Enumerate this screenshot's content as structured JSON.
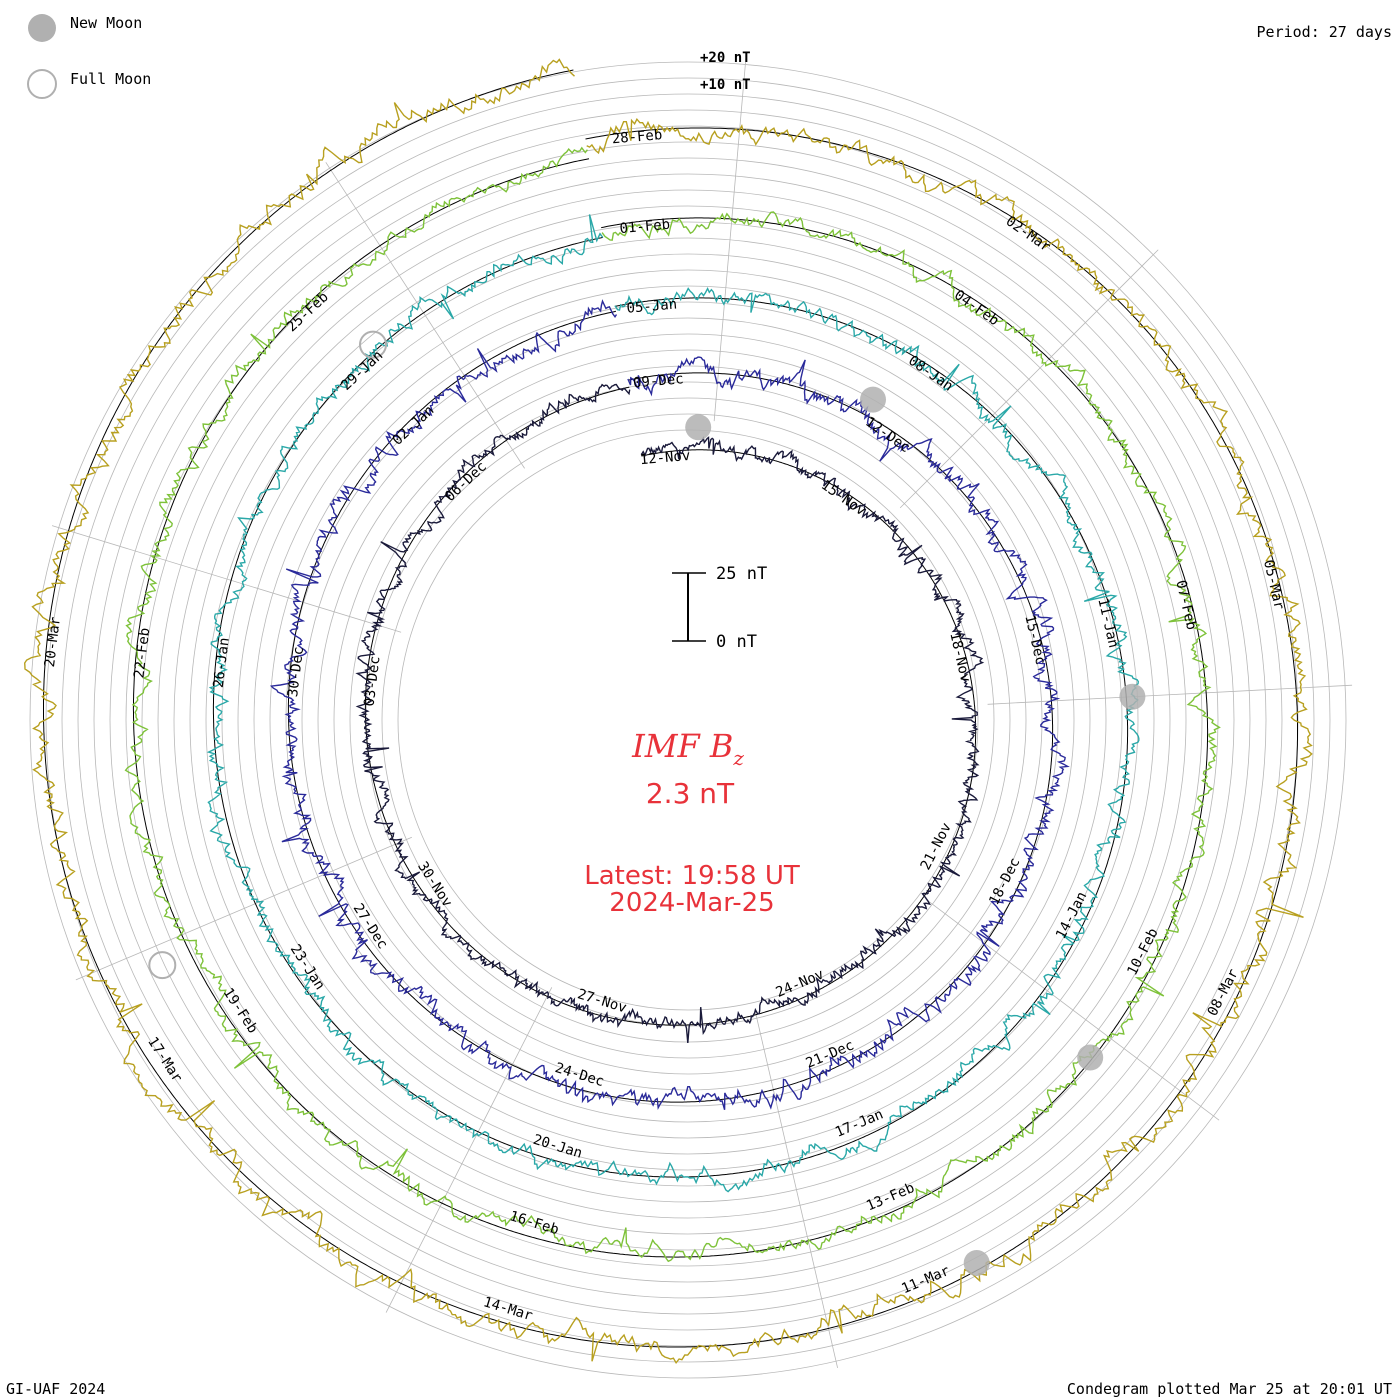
{
  "header": {
    "period": "Period: 27 days"
  },
  "legend": {
    "new_moon": "New Moon",
    "full_moon": "Full Moon"
  },
  "footer": {
    "credit": "GI-UAF 2024",
    "plotted": "Condegram plotted Mar 25 at 20:01 UT"
  },
  "center": {
    "title": "IMF B",
    "subscript": "z",
    "value": "2.3 nT",
    "latest_time": "Latest: 19:58 UT",
    "latest_date": "2024-Mar-25"
  },
  "scale": {
    "top_label": "25 nT",
    "bottom_label": "0 nT"
  },
  "outer_scale": {
    "plus20": "+20 nT",
    "plus10": "+10 nT"
  },
  "colors": {
    "accent": "#e8323a",
    "grid": "#b8b8b8",
    "moon": "#b0b0b0"
  },
  "chart_data": {
    "type": "condegram",
    "title": "IMF Bz",
    "units": "nT",
    "current_value": 2.3,
    "period_days": 27,
    "rotations": [
      {
        "name": "rotation-1",
        "color": "#1a1a3a",
        "amplitude": 6,
        "labels": [
          "12-Nov",
          "15-Nov",
          "18-Nov",
          "21-Nov",
          "24-Nov",
          "27-Nov",
          "30-Nov",
          "03-Dec",
          "06-Dec"
        ]
      },
      {
        "name": "rotation-2",
        "color": "#2a2a9a",
        "amplitude": 8,
        "labels": [
          "09-Dec",
          "12-Dec",
          "15-Dec",
          "18-Dec",
          "21-Dec",
          "24-Dec",
          "27-Dec",
          "30-Dec",
          "02-Jan"
        ]
      },
      {
        "name": "rotation-3",
        "color": "#2aa8a8",
        "amplitude": 7,
        "labels": [
          "05-Jan",
          "08-Jan",
          "11-Jan",
          "14-Jan",
          "17-Jan",
          "20-Jan",
          "23-Jan",
          "26-Jan",
          "29-Jan"
        ]
      },
      {
        "name": "rotation-4",
        "color": "#7ec23a",
        "amplitude": 7,
        "labels": [
          "01-Feb",
          "04-Feb",
          "07-Feb",
          "10-Feb",
          "13-Feb",
          "16-Feb",
          "19-Feb",
          "22-Feb",
          "25-Feb"
        ]
      },
      {
        "name": "rotation-5",
        "color": "#b8a020",
        "amplitude": 9,
        "labels": [
          "28-Feb",
          "02-Mar",
          "05-Mar",
          "08-Mar",
          "11-Mar",
          "14-Mar",
          "17-Mar",
          "20-Mar",
          ""
        ]
      }
    ],
    "label_angles_deg": [
      95,
      55,
      13,
      -27,
      -67,
      -107,
      -147,
      173,
      133
    ],
    "new_moon_angles_deg": [
      88,
      60,
      3,
      -40,
      -62
    ],
    "full_moon_angles_deg": [
      130,
      -155
    ]
  }
}
